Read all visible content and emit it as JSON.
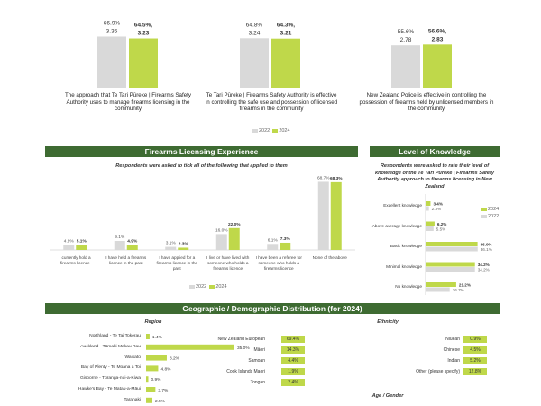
{
  "colors": {
    "y2022": "#d9d9d9",
    "y2024": "#bfd84a",
    "header": "#3e6b32"
  },
  "legend": {
    "y2022": "2022",
    "y2024": "2024"
  },
  "top_charts": [
    {
      "caption": "The approach that Te Tari Pūreke | Firearms Safety Authority uses to manage firearms licensing in the community",
      "v2022_pct": "66.9%",
      "v2022_mean": "3.35",
      "v2024_pct": "64.5%,",
      "v2024_mean": "3.23",
      "v2022": 66.9,
      "v2024": 64.5
    },
    {
      "caption": "Te Tari Pūreke | Firearms Safety Authority is effective in controlling the safe use and possession of licensed firearms in the community",
      "v2022_pct": "64.8%",
      "v2022_mean": "3.24",
      "v2024_pct": "64.3%,",
      "v2024_mean": "3.21",
      "v2022": 64.8,
      "v2024": 64.3
    },
    {
      "caption": "New Zealand Police is effective in controlling the possession of firearms held by unlicensed members in the community",
      "v2022_pct": "55.6%",
      "v2022_mean": "2.78",
      "v2024_pct": "56.6%,",
      "v2024_mean": "2.83",
      "v2022": 55.6,
      "v2024": 56.6
    }
  ],
  "licensing": {
    "title": "Firearms Licensing Experience",
    "subtitle": "Respondents were asked to tick all of the following that applied to them"
  },
  "knowledge": {
    "title": "Level of Knowledge",
    "subtitle": "Respondents were asked to rate their level of knowledge of the Te Tari Pūreke | Firearms Safety Authority approach to firearms licensing in New Zealand"
  },
  "demographic": {
    "title": "Geographic / Demographic Distribution (for 2024)",
    "region_title": "Region",
    "ethnicity_title": "Ethnicity",
    "agegender_title": "Age / Gender"
  },
  "chart_data": [
    {
      "type": "bar",
      "title": "Firearms Licensing Experience",
      "categories": [
        "I currently hold a firearms licence",
        "I have held a firearms licence in the past",
        "I have applied for a firearms licence in the past",
        "I live or have lived with someone who holds a firearms licence",
        "I have been a referee for someone who holds a firearms licence",
        "None of the above"
      ],
      "series": [
        {
          "name": "2022",
          "values": [
            4.9,
            9.1,
            3.1,
            16.0,
            6.1,
            68.7
          ],
          "labels": [
            "4.9%",
            "9.1%",
            "3.1%",
            "16.0%",
            "6.1%",
            "68.7%"
          ]
        },
        {
          "name": "2024",
          "values": [
            5.1,
            4.9,
            2.3,
            22.0,
            7.3,
            68.3
          ],
          "labels": [
            "5.1%",
            "4.9%",
            "2.3%",
            "22.0%",
            "7.3%",
            "68.3%"
          ]
        }
      ]
    },
    {
      "type": "bar",
      "orientation": "horizontal",
      "title": "Level of Knowledge",
      "categories": [
        "Excellent knowledge",
        "Above average knowledge",
        "Basic knowledge",
        "Minimal knowledge",
        "No knowledge"
      ],
      "series": [
        {
          "name": "2024",
          "values": [
            3.4,
            6.2,
            36.0,
            34.2,
            21.2
          ],
          "labels": [
            "3.4%",
            "6.2%",
            "36.0%",
            "34.2%",
            "21.2%"
          ]
        },
        {
          "name": "2022",
          "values": [
            2.3,
            5.5,
            36.1,
            34.2,
            16.7
          ],
          "labels": [
            "2.3%",
            "5.5%",
            "36.1%",
            "34.2%",
            "16.7%"
          ]
        }
      ]
    },
    {
      "type": "bar",
      "orientation": "horizontal",
      "title": "Region",
      "categories": [
        "Northland - Te Tai Tokerau",
        "Auckland - Tāmaki Makau Rau",
        "Waikato",
        "Bay of Plenty - Te Moana a Toi",
        "Gisborne - Tūranga-nui-a-Kiwa",
        "Hawke's Bay - Te Matau-a-Māui",
        "Taranaki"
      ],
      "values": [
        1.4,
        35.0,
        8.2,
        4.8,
        0.9,
        3.7,
        2.5
      ],
      "labels": [
        "1.4%",
        "35.0%",
        "8.2%",
        "4.8%",
        "0.9%",
        "3.7%",
        "2.5%"
      ]
    },
    {
      "type": "table",
      "title": "Ethnicity",
      "rows": [
        {
          "name": "New Zealand European",
          "value": "69.4%"
        },
        {
          "name": "Māori",
          "value": "14.3%"
        },
        {
          "name": "Samoan",
          "value": "4.4%"
        },
        {
          "name": "Cook Islands Maori",
          "value": "1.9%"
        },
        {
          "name": "Tongan",
          "value": "2.4%"
        },
        {
          "name": "Niuean",
          "value": "0.9%"
        },
        {
          "name": "Chinese",
          "value": "4.5%"
        },
        {
          "name": "Indian",
          "value": "5.2%"
        },
        {
          "name": "Other (please specify)",
          "value": "12.8%"
        }
      ]
    }
  ]
}
